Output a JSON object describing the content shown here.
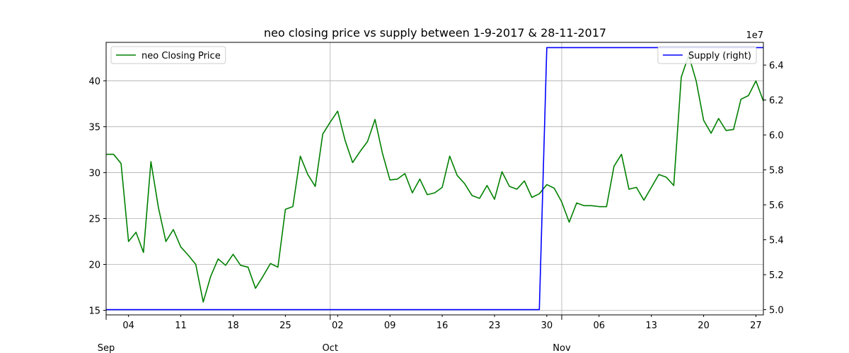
{
  "chart_data": {
    "type": "line",
    "title": "neo closing price vs supply between 1-9-2017 & 28-11-2017",
    "x_start": "2017-09-01",
    "x_end": "2017-11-28",
    "x_ticks_minor": [
      {
        "date": "2017-09-04",
        "label": "04"
      },
      {
        "date": "2017-09-11",
        "label": "11"
      },
      {
        "date": "2017-09-18",
        "label": "18"
      },
      {
        "date": "2017-09-25",
        "label": "25"
      },
      {
        "date": "2017-10-02",
        "label": "02"
      },
      {
        "date": "2017-10-09",
        "label": "09"
      },
      {
        "date": "2017-10-16",
        "label": "16"
      },
      {
        "date": "2017-10-23",
        "label": "23"
      },
      {
        "date": "2017-10-30",
        "label": "30"
      },
      {
        "date": "2017-11-06",
        "label": "06"
      },
      {
        "date": "2017-11-13",
        "label": "13"
      },
      {
        "date": "2017-11-20",
        "label": "20"
      },
      {
        "date": "2017-11-27",
        "label": "27"
      }
    ],
    "x_ticks_major": [
      {
        "date": "2017-09-01",
        "label": "Sep"
      },
      {
        "date": "2017-10-01",
        "label": "Oct"
      },
      {
        "date": "2017-11-01",
        "label": "Nov"
      }
    ],
    "y_left": {
      "range": [
        14.5,
        44.2
      ],
      "ticks": [
        15,
        20,
        25,
        30,
        35,
        40
      ]
    },
    "y_right": {
      "range": [
        49700000.0,
        65300000.0
      ],
      "ticks": [
        50000000.0,
        52000000.0,
        54000000.0,
        56000000.0,
        58000000.0,
        60000000.0,
        62000000.0,
        64000000.0
      ],
      "tick_labels": [
        "5.0",
        "5.2",
        "5.4",
        "5.6",
        "5.8",
        "6.0",
        "6.2",
        "6.4"
      ],
      "multiplier_label": "1e7"
    },
    "grid": true,
    "series": [
      {
        "name": "neo Closing Price",
        "axis": "left",
        "color": "#008000",
        "legend_position": "top-left",
        "x": [
          "2017-09-01",
          "2017-09-02",
          "2017-09-03",
          "2017-09-04",
          "2017-09-05",
          "2017-09-06",
          "2017-09-07",
          "2017-09-08",
          "2017-09-09",
          "2017-09-10",
          "2017-09-11",
          "2017-09-12",
          "2017-09-13",
          "2017-09-14",
          "2017-09-15",
          "2017-09-16",
          "2017-09-17",
          "2017-09-18",
          "2017-09-19",
          "2017-09-20",
          "2017-09-21",
          "2017-09-22",
          "2017-09-23",
          "2017-09-24",
          "2017-09-25",
          "2017-09-26",
          "2017-09-27",
          "2017-09-28",
          "2017-09-29",
          "2017-09-30",
          "2017-10-01",
          "2017-10-02",
          "2017-10-03",
          "2017-10-04",
          "2017-10-05",
          "2017-10-06",
          "2017-10-07",
          "2017-10-08",
          "2017-10-09",
          "2017-10-10",
          "2017-10-11",
          "2017-10-12",
          "2017-10-13",
          "2017-10-14",
          "2017-10-15",
          "2017-10-16",
          "2017-10-17",
          "2017-10-18",
          "2017-10-19",
          "2017-10-20",
          "2017-10-21",
          "2017-10-22",
          "2017-10-23",
          "2017-10-24",
          "2017-10-25",
          "2017-10-26",
          "2017-10-27",
          "2017-10-28",
          "2017-10-29",
          "2017-10-30",
          "2017-10-31",
          "2017-11-01",
          "2017-11-02",
          "2017-11-03",
          "2017-11-04",
          "2017-11-05",
          "2017-11-06",
          "2017-11-07",
          "2017-11-08",
          "2017-11-09",
          "2017-11-10",
          "2017-11-11",
          "2017-11-12",
          "2017-11-13",
          "2017-11-14",
          "2017-11-15",
          "2017-11-16",
          "2017-11-17",
          "2017-11-18",
          "2017-11-19",
          "2017-11-20",
          "2017-11-21",
          "2017-11-22",
          "2017-11-23",
          "2017-11-24",
          "2017-11-25",
          "2017-11-26",
          "2017-11-27",
          "2017-11-28"
        ],
        "values": [
          32.0,
          32.0,
          31.0,
          22.5,
          23.5,
          21.3,
          31.2,
          26.2,
          22.5,
          23.8,
          21.9,
          21.0,
          20.0,
          15.9,
          18.7,
          20.6,
          19.9,
          21.1,
          19.9,
          19.7,
          17.4,
          18.7,
          20.1,
          19.7,
          26.0,
          26.3,
          31.8,
          29.8,
          28.5,
          34.2,
          35.5,
          36.7,
          33.5,
          31.1,
          32.3,
          33.4,
          35.8,
          32.1,
          29.2,
          29.3,
          29.9,
          27.8,
          29.3,
          27.6,
          27.8,
          28.4,
          31.8,
          29.7,
          28.8,
          27.5,
          27.2,
          28.6,
          27.1,
          30.1,
          28.5,
          28.2,
          29.1,
          27.3,
          27.7,
          28.7,
          28.3,
          26.8,
          24.6,
          26.7,
          26.4,
          26.4,
          26.3,
          26.3,
          30.7,
          32.0,
          28.2,
          28.4,
          27.0,
          28.4,
          29.8,
          29.5,
          28.6,
          40.4,
          42.8,
          40.0,
          35.7,
          34.3,
          35.9,
          34.6,
          34.7,
          38.0,
          38.4,
          40.0,
          37.8
        ]
      },
      {
        "name": "Supply (right)",
        "axis": "right",
        "color": "#0000ff",
        "legend_position": "top-right",
        "x": [
          "2017-09-01",
          "2017-10-29",
          "2017-10-30",
          "2017-11-28"
        ],
        "values": [
          50000000.0,
          50000000.0,
          65000000.0,
          65000000.0
        ]
      }
    ]
  }
}
